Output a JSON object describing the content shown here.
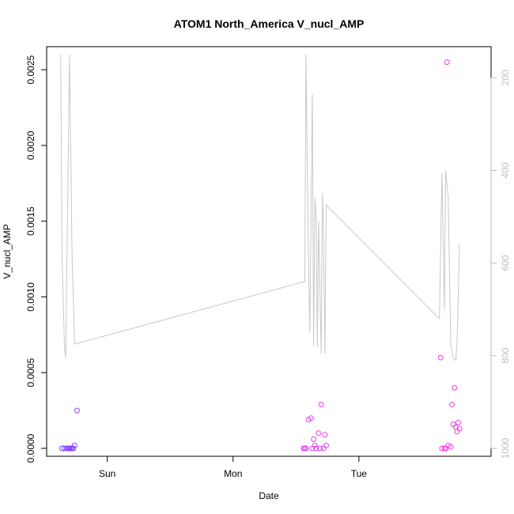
{
  "chart_data": {
    "type": "scatter",
    "title": "ATOM1 North_America V_nucl_AMP",
    "xlabel": "Date",
    "ylabel": "V_nucl_AMP",
    "x_ticks": [
      "Sun",
      "Mon",
      "Tue"
    ],
    "x_tick_days": [
      1,
      2,
      3
    ],
    "xlim": [
      0.6,
      3.95
    ],
    "ylim": [
      0,
      0.0026
    ],
    "y_ticks": [
      {
        "value": 0.0,
        "label": "0.0000"
      },
      {
        "value": 0.0005,
        "label": "0.0005"
      },
      {
        "value": 0.001,
        "label": "0.0010"
      },
      {
        "value": 0.0015,
        "label": "0.0015"
      },
      {
        "value": 0.002,
        "label": "0.0020"
      },
      {
        "value": 0.0025,
        "label": "0.0025"
      }
    ],
    "y2lim": [
      1000,
      150
    ],
    "y2_ticks": [
      {
        "value": 200,
        "label": "200"
      },
      {
        "value": 400,
        "label": "400"
      },
      {
        "value": 600,
        "label": "600"
      },
      {
        "value": 800,
        "label": "800"
      },
      {
        "value": 1000,
        "label": "1000"
      }
    ],
    "series": [
      {
        "kind": "points",
        "points": [
          {
            "x": 0.64,
            "y": 0.0,
            "color": "#7f3fff"
          },
          {
            "x": 0.66,
            "y": 0.0,
            "color": "#7f3fff"
          },
          {
            "x": 0.68,
            "y": 0.0,
            "color": "#7f3fff"
          },
          {
            "x": 0.69,
            "y": 0.0,
            "color": "#7f3fff"
          },
          {
            "x": 0.7,
            "y": 0.0,
            "color": "#7f3fff"
          },
          {
            "x": 0.71,
            "y": 0.0,
            "color": "#7f3fff"
          },
          {
            "x": 0.72,
            "y": 0.0,
            "color": "#7f3fff"
          },
          {
            "x": 0.73,
            "y": 0.0,
            "color": "#7f3fff"
          },
          {
            "x": 0.74,
            "y": 2e-05,
            "color": "#7f3fff"
          },
          {
            "x": 0.76,
            "y": 0.00025,
            "color": "#9f3fff"
          },
          {
            "x": 2.56,
            "y": 0.0,
            "color": "#df3fef"
          },
          {
            "x": 2.57,
            "y": 0.0,
            "color": "#df3fef"
          },
          {
            "x": 2.58,
            "y": 0.0,
            "color": "#df3fef"
          },
          {
            "x": 2.6,
            "y": 0.00019,
            "color": "#df3fef"
          },
          {
            "x": 2.62,
            "y": 0.0002,
            "color": "#df3fef"
          },
          {
            "x": 2.63,
            "y": 0.0,
            "color": "#df3fef"
          },
          {
            "x": 2.64,
            "y": 6e-05,
            "color": "#df3fef"
          },
          {
            "x": 2.65,
            "y": 2e-05,
            "color": "#df3fef"
          },
          {
            "x": 2.66,
            "y": 0.0,
            "color": "#df3fef"
          },
          {
            "x": 2.68,
            "y": 0.0001,
            "color": "#df3fef"
          },
          {
            "x": 2.69,
            "y": 0.0,
            "color": "#df3fef"
          },
          {
            "x": 2.7,
            "y": 0.00029,
            "color": "#df3fef"
          },
          {
            "x": 2.72,
            "y": 0.0,
            "color": "#df3fef"
          },
          {
            "x": 2.73,
            "y": 9e-05,
            "color": "#df3fef"
          },
          {
            "x": 2.74,
            "y": 2e-05,
            "color": "#df3fef"
          },
          {
            "x": 3.65,
            "y": 0.0006,
            "color": "#ef3fdf"
          },
          {
            "x": 3.66,
            "y": 0.0,
            "color": "#ef3fdf"
          },
          {
            "x": 3.68,
            "y": 0.0,
            "color": "#ef3fdf"
          },
          {
            "x": 3.69,
            "y": 0.0,
            "color": "#ef3fdf"
          },
          {
            "x": 3.7,
            "y": 0.00255,
            "color": "#ef3fdf"
          },
          {
            "x": 3.71,
            "y": 2e-05,
            "color": "#ef3fdf"
          },
          {
            "x": 3.73,
            "y": 1e-05,
            "color": "#ef3fdf"
          },
          {
            "x": 3.74,
            "y": 0.00029,
            "color": "#ef3fdf"
          },
          {
            "x": 3.75,
            "y": 0.00016,
            "color": "#ef3fdf"
          },
          {
            "x": 3.76,
            "y": 0.0004,
            "color": "#ef3fdf"
          },
          {
            "x": 3.77,
            "y": 0.00014,
            "color": "#ef3fdf"
          },
          {
            "x": 3.78,
            "y": 0.00011,
            "color": "#ef3fdf"
          },
          {
            "x": 3.79,
            "y": 0.00017,
            "color": "#ef3fdf"
          },
          {
            "x": 3.8,
            "y": 0.00013,
            "color": "#ef3fdf"
          }
        ]
      },
      {
        "kind": "line",
        "axis": "right",
        "color": "#c8c8c8",
        "points": [
          {
            "x": 0.63,
            "y": 150
          },
          {
            "x": 0.64,
            "y": 580
          },
          {
            "x": 0.66,
            "y": 780
          },
          {
            "x": 0.67,
            "y": 805
          },
          {
            "x": 0.7,
            "y": 150
          },
          {
            "x": 0.72,
            "y": 580
          },
          {
            "x": 0.74,
            "y": 775
          },
          {
            "x": 2.57,
            "y": 640
          },
          {
            "x": 2.58,
            "y": 150
          },
          {
            "x": 2.59,
            "y": 390
          },
          {
            "x": 2.6,
            "y": 600
          },
          {
            "x": 2.61,
            "y": 750
          },
          {
            "x": 2.63,
            "y": 235
          },
          {
            "x": 2.64,
            "y": 780
          },
          {
            "x": 2.65,
            "y": 460
          },
          {
            "x": 2.66,
            "y": 495
          },
          {
            "x": 2.67,
            "y": 780
          },
          {
            "x": 2.68,
            "y": 510
          },
          {
            "x": 2.7,
            "y": 795
          },
          {
            "x": 2.71,
            "y": 450
          },
          {
            "x": 2.72,
            "y": 560
          },
          {
            "x": 2.73,
            "y": 795
          },
          {
            "x": 2.74,
            "y": 475
          },
          {
            "x": 3.64,
            "y": 720
          },
          {
            "x": 3.66,
            "y": 405
          },
          {
            "x": 3.68,
            "y": 700
          },
          {
            "x": 3.69,
            "y": 400
          },
          {
            "x": 3.71,
            "y": 460
          },
          {
            "x": 3.73,
            "y": 775
          },
          {
            "x": 3.75,
            "y": 805
          },
          {
            "x": 3.77,
            "y": 810
          },
          {
            "x": 3.78,
            "y": 770
          },
          {
            "x": 3.8,
            "y": 560
          }
        ]
      }
    ]
  }
}
